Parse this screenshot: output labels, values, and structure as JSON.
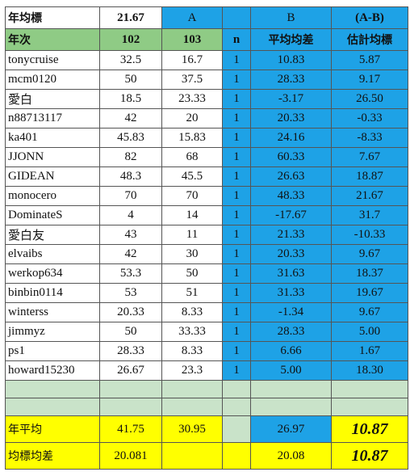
{
  "header": {
    "title": "年均標",
    "value": "21.67",
    "a": "A",
    "b": "B",
    "ab": "(A-B)"
  },
  "columns": [
    "年次",
    "102",
    "103",
    "n",
    "平均均差",
    "估計均標"
  ],
  "rows": [
    [
      "tonycruise",
      "32.5",
      "16.7",
      "1",
      "10.83",
      "5.87"
    ],
    [
      "mcm0120",
      "50",
      "37.5",
      "1",
      "28.33",
      "9.17"
    ],
    [
      "愛白",
      "18.5",
      "23.33",
      "1",
      "-3.17",
      "26.50"
    ],
    [
      "n88713117",
      "42",
      "20",
      "1",
      "20.33",
      "-0.33"
    ],
    [
      "ka401",
      "45.83",
      "15.83",
      "1",
      "24.16",
      "-8.33"
    ],
    [
      "JJONN",
      "82",
      "68",
      "1",
      "60.33",
      "7.67"
    ],
    [
      "GIDEAN",
      "48.3",
      "45.5",
      "1",
      "26.63",
      "18.87"
    ],
    [
      "monocero",
      "70",
      "70",
      "1",
      "48.33",
      "21.67"
    ],
    [
      "DominateS",
      "4",
      "14",
      "1",
      "-17.67",
      "31.7"
    ],
    [
      "愛白友",
      "43",
      "11",
      "1",
      "21.33",
      "-10.33"
    ],
    [
      "elvaibs",
      "42",
      "30",
      "1",
      "20.33",
      "9.67"
    ],
    [
      "werkop634",
      "53.3",
      "50",
      "1",
      "31.63",
      "18.37"
    ],
    [
      "binbin0114",
      "53",
      "51",
      "1",
      "31.33",
      "19.67"
    ],
    [
      "winterss",
      "20.33",
      "8.33",
      "1",
      "-1.34",
      "9.67"
    ],
    [
      "jimmyz",
      "50",
      "33.33",
      "1",
      "28.33",
      "5.00"
    ],
    [
      "ps1",
      "28.33",
      "8.33",
      "1",
      "6.66",
      "1.67"
    ],
    [
      "howard15230",
      "26.67",
      "23.3",
      "1",
      "5.00",
      "18.30"
    ]
  ],
  "summary": {
    "average": {
      "label": "年平均",
      "c102": "41.75",
      "c103": "30.95",
      "b": "26.97",
      "ab": "10.87"
    },
    "deviation": {
      "label": "均標均差",
      "c102": "20.081",
      "b": "20.08",
      "ab": "10.87"
    }
  }
}
